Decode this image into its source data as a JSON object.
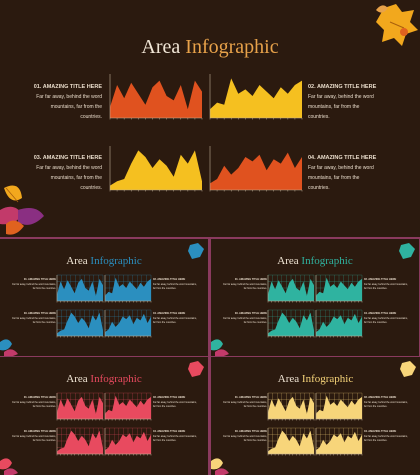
{
  "slide": {
    "title_main": "Area",
    "title_accent": "Infographic",
    "sections": [
      {
        "heading": "01. AMAZING TITLE HERE",
        "body": "Far far away, behind the word mountains, far from the countries."
      },
      {
        "heading": "02. AMAZING TITLE HERE",
        "body": "Far far away, behind the word mountains, far from the countries."
      },
      {
        "heading": "03. AMAZING TITLE HERE",
        "body": "Far far away, behind the word mountains, far from the countries."
      },
      {
        "heading": "04. AMAZING TITLE HERE",
        "body": "Far far away, behind the word mountains, far from the countries."
      }
    ]
  },
  "colors": {
    "background": "#2b1a0f",
    "border": "#8a3a5e",
    "title": "#f1e6d6",
    "title_accent_main": "#e8a24a",
    "main_chart_1": "#e0521f",
    "main_chart_2": "#f5c020",
    "main_chart_3": "#f5c020",
    "main_chart_4": "#e0521f",
    "variant_blue": "#2b8fbf",
    "variant_teal": "#2fb3a0",
    "variant_red": "#e84a5f",
    "variant_yellow": "#f7d57a"
  },
  "variants": [
    {
      "name": "blue",
      "accent_color": "#2b8fbf"
    },
    {
      "name": "teal",
      "accent_color": "#2fb3a0"
    },
    {
      "name": "red",
      "accent_color": "#e84a5f"
    },
    {
      "name": "yellow",
      "accent_color": "#f7d57a"
    }
  ],
  "chart_data": [
    {
      "type": "area",
      "x": [
        0,
        1,
        2,
        3,
        4,
        5,
        6,
        7,
        8,
        9,
        10,
        11,
        12,
        13
      ],
      "values": [
        10,
        30,
        18,
        32,
        22,
        12,
        28,
        34,
        20,
        16,
        30,
        8,
        34,
        24
      ]
    },
    {
      "type": "area",
      "x": [
        0,
        1,
        2,
        3,
        4,
        5,
        6,
        7,
        8,
        9,
        10,
        11,
        12,
        13
      ],
      "values": [
        8,
        14,
        12,
        36,
        22,
        26,
        20,
        30,
        24,
        18,
        28,
        22,
        30,
        34
      ]
    },
    {
      "type": "area",
      "x": [
        0,
        1,
        2,
        3,
        4,
        5,
        6,
        7,
        8,
        9,
        10,
        11,
        12,
        13
      ],
      "values": [
        4,
        8,
        10,
        24,
        36,
        30,
        20,
        28,
        22,
        12,
        32,
        24,
        36,
        8
      ]
    },
    {
      "type": "area",
      "x": [
        0,
        1,
        2,
        3,
        4,
        5,
        6,
        7,
        8,
        9,
        10,
        11,
        12,
        13
      ],
      "values": [
        6,
        10,
        22,
        14,
        20,
        30,
        26,
        32,
        18,
        28,
        24,
        34,
        20,
        30
      ]
    }
  ]
}
